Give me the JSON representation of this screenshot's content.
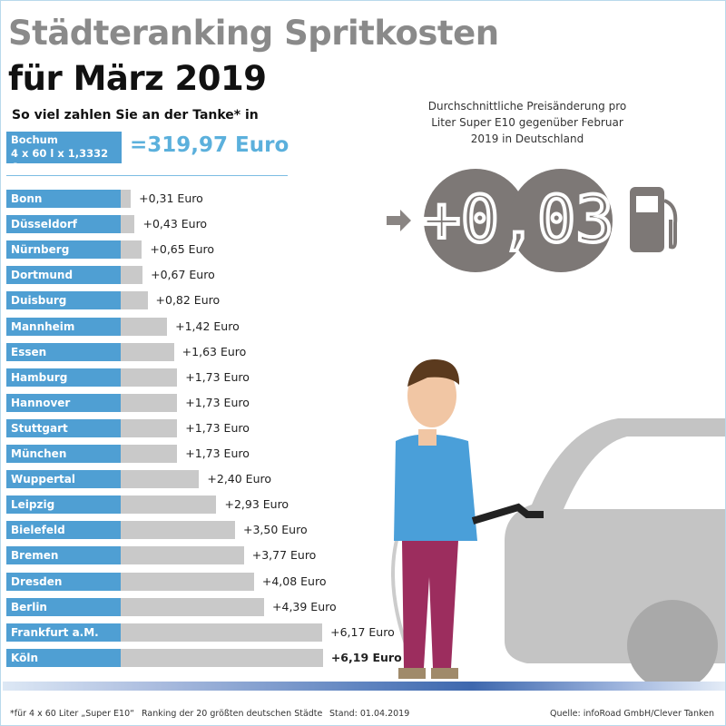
{
  "title_line1": "Städteranking Spritkosten",
  "title_line2": "für März 2019",
  "subtitle": "So viel zahlen Sie an der Tanke* in",
  "reference": {
    "city": "Bochum",
    "formula": "4 x 60 l x 1,3332 €",
    "total": "=319,97 Euro"
  },
  "price_change": {
    "caption": "Durchschnittliche Preisänderung pro Liter Super E10 gegenüber Februar 2019 in Deutschland",
    "value": "+0,03",
    "icons": [
      "arrow-right-icon",
      "fuel-pump-icon"
    ]
  },
  "colors": {
    "label_bar": "#4f9fd3",
    "value_bar": "#c9c9c9",
    "accent": "#5bb0dc",
    "display": "#7d7876"
  },
  "chart_data": {
    "type": "bar",
    "orientation": "horizontal",
    "categories": [
      "Bonn",
      "Düsseldorf",
      "Nürnberg",
      "Dortmund",
      "Duisburg",
      "Mannheim",
      "Essen",
      "Hamburg",
      "Hannover",
      "Stuttgart",
      "München",
      "Wuppertal",
      "Leipzig",
      "Bielefeld",
      "Bremen",
      "Dresden",
      "Berlin",
      "Frankfurt a.M.",
      "Köln"
    ],
    "values": [
      0.31,
      0.43,
      0.65,
      0.67,
      0.82,
      1.42,
      1.63,
      1.73,
      1.73,
      1.73,
      1.73,
      2.4,
      2.93,
      3.5,
      3.77,
      4.08,
      4.39,
      6.17,
      6.19
    ],
    "labels": [
      "+0,31 Euro",
      "+0,43 Euro",
      "+0,65 Euro",
      "+0,67 Euro",
      "+0,82 Euro",
      "+1,42 Euro",
      "+1,63 Euro",
      "+1,73 Euro",
      "+1,73 Euro",
      "+1,73 Euro",
      "+1,73 Euro",
      "+2,40 Euro",
      "+2,93 Euro",
      "+3,50 Euro",
      "+3,77 Euro",
      "+4,08 Euro",
      "+4,39 Euro",
      "+6,17 Euro",
      "+6,19 Euro"
    ],
    "unit": "Euro",
    "grid": false
  },
  "footer": {
    "note": "*für 4 x 60 Liter „Super E10“",
    "ranking": "Ranking der 20 größten deutschen Städte",
    "date": "Stand: 01.04.2019",
    "source": "Quelle: infoRoad GmbH/Clever Tanken"
  }
}
